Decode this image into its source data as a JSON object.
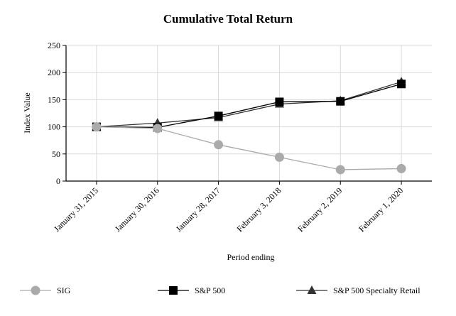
{
  "chart_data": {
    "type": "line",
    "title": "Cumulative Total Return",
    "xlabel": "Period ending",
    "ylabel": "Index Value",
    "ylim": [
      0,
      250
    ],
    "yticks": [
      0,
      50,
      100,
      150,
      200,
      250
    ],
    "categories": [
      "January 31, 2015",
      "January 30, 2016",
      "January 28, 2017",
      "February 3, 2018",
      "February 2, 2019",
      "February 1, 2020"
    ],
    "grid": true,
    "legend_position": "bottom",
    "series": [
      {
        "name": "SIG",
        "values": [
          100,
          97,
          67,
          44,
          21,
          23
        ],
        "color": "#aaaaaa",
        "marker": "circle"
      },
      {
        "name": "S&P 500",
        "values": [
          100,
          99,
          120,
          146,
          147,
          179
        ],
        "color": "#000000",
        "marker": "square"
      },
      {
        "name": "S&P 500 Specialty Retail",
        "values": [
          100,
          107,
          117,
          142,
          148,
          183
        ],
        "color": "#333333",
        "marker": "triangle"
      }
    ]
  }
}
